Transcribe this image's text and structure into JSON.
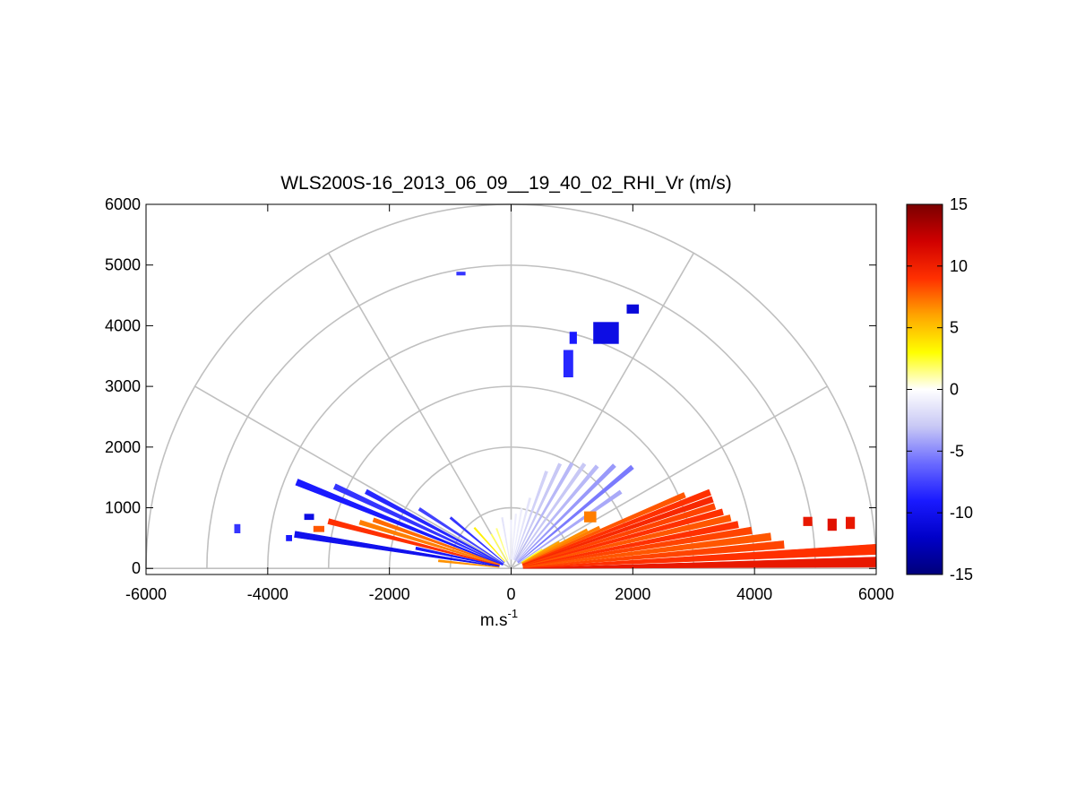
{
  "chart_data": {
    "type": "heatmap",
    "subtype": "polar-rhi-sector",
    "title": "WLS200S-16_2013_06_09__19_40_02_RHI_Vr (m/s)",
    "xlabel": "m.s",
    "xlabel_superscript": "-1",
    "xlim": [
      -6000,
      6000
    ],
    "ylim": [
      -100,
      6000
    ],
    "xticks": [
      -6000,
      -4000,
      -2000,
      0,
      2000,
      4000,
      6000
    ],
    "yticks": [
      0,
      1000,
      2000,
      3000,
      4000,
      5000,
      6000
    ],
    "polar_grid": {
      "ranges": [
        1000,
        2000,
        3000,
        4000,
        5000,
        6000
      ],
      "angles_deg": [
        0,
        30,
        60,
        90,
        120,
        150,
        180
      ]
    },
    "colorbar": {
      "range": [
        -15,
        15
      ],
      "ticks": [
        15,
        10,
        5,
        0,
        -5,
        -10,
        -15
      ],
      "colormap": [
        "#00007a",
        "#0000c8",
        "#1a1aff",
        "#6a6aff",
        "#c8c8f5",
        "#ffffff",
        "#ffff00",
        "#ffa500",
        "#ff3000",
        "#d00000",
        "#7a0000"
      ]
    },
    "rays": [
      {
        "elev_deg": 1.0,
        "r0": 200,
        "r1": 6000,
        "v": 10.5
      },
      {
        "elev_deg": 3.0,
        "r0": 200,
        "r1": 6000,
        "v": 9.0
      },
      {
        "elev_deg": 5.0,
        "r0": 200,
        "r1": 4500,
        "v": 8.5
      },
      {
        "elev_deg": 7.0,
        "r0": 200,
        "r1": 4300,
        "v": 8.0
      },
      {
        "elev_deg": 9.0,
        "r0": 200,
        "r1": 4000,
        "v": 8.5
      },
      {
        "elev_deg": 11.0,
        "r0": 200,
        "r1": 3800,
        "v": 9.0
      },
      {
        "elev_deg": 13.0,
        "r0": 200,
        "r1": 3700,
        "v": 8.0
      },
      {
        "elev_deg": 15.0,
        "r0": 200,
        "r1": 3600,
        "v": 9.0
      },
      {
        "elev_deg": 17.0,
        "r0": 200,
        "r1": 3500,
        "v": 8.5
      },
      {
        "elev_deg": 19.0,
        "r0": 200,
        "r1": 3500,
        "v": 9.5
      },
      {
        "elev_deg": 21.0,
        "r0": 200,
        "r1": 3500,
        "v": 9.0
      },
      {
        "elev_deg": 23.0,
        "r0": 200,
        "r1": 3100,
        "v": 8.0
      },
      {
        "elev_deg": 25.0,
        "r0": 200,
        "r1": 1600,
        "v": 7.0
      },
      {
        "elev_deg": 27.0,
        "r0": 200,
        "r1": 1400,
        "v": 6.5
      },
      {
        "elev_deg": 29.0,
        "r0": 200,
        "r1": 900,
        "v": 6.0
      },
      {
        "elev_deg": 31.5,
        "r0": 200,
        "r1": 600,
        "v": 2.5
      },
      {
        "elev_deg": 35.0,
        "r0": 150,
        "r1": 2200,
        "v": -4.0
      },
      {
        "elev_deg": 40.0,
        "r0": 150,
        "r1": 2600,
        "v": -5.5
      },
      {
        "elev_deg": 45.0,
        "r0": 150,
        "r1": 2400,
        "v": -4.5
      },
      {
        "elev_deg": 50.0,
        "r0": 150,
        "r1": 2200,
        "v": -3.5
      },
      {
        "elev_deg": 55.0,
        "r0": 150,
        "r1": 2100,
        "v": -3.0
      },
      {
        "elev_deg": 60.0,
        "r0": 150,
        "r1": 2000,
        "v": -3.5
      },
      {
        "elev_deg": 65.0,
        "r0": 150,
        "r1": 1900,
        "v": -3.0
      },
      {
        "elev_deg": 70.0,
        "r0": 150,
        "r1": 1700,
        "v": -2.5
      },
      {
        "elev_deg": 75.0,
        "r0": 150,
        "r1": 1200,
        "v": -1.5
      },
      {
        "elev_deg": 80.0,
        "r0": 150,
        "r1": 1000,
        "v": -1.0
      },
      {
        "elev_deg": 85.0,
        "r0": 150,
        "r1": 900,
        "v": -1.0
      },
      {
        "elev_deg": 90.0,
        "r0": 150,
        "r1": 800,
        "v": -1.0
      },
      {
        "elev_deg": 100.0,
        "r0": 150,
        "r1": 850,
        "v": -1.5
      },
      {
        "elev_deg": 110.0,
        "r0": 150,
        "r1": 700,
        "v": 1.5
      },
      {
        "elev_deg": 120.0,
        "r0": 150,
        "r1": 650,
        "v": 2.0
      },
      {
        "elev_deg": 132.0,
        "r0": 150,
        "r1": 900,
        "v": 3.5
      },
      {
        "elev_deg": 140.0,
        "r0": 150,
        "r1": 1300,
        "v": -8.0
      },
      {
        "elev_deg": 147.0,
        "r0": 150,
        "r1": 1800,
        "v": -7.5
      },
      {
        "elev_deg": 152.0,
        "r0": 150,
        "r1": 2700,
        "v": -8.5
      },
      {
        "elev_deg": 155.0,
        "r0": 150,
        "r1": 3200,
        "v": -8.0
      },
      {
        "elev_deg": 158.0,
        "r0": 150,
        "r1": 3800,
        "v": -9.0
      },
      {
        "elev_deg": 160.5,
        "r0": 200,
        "r1": 2400,
        "v": 7.5
      },
      {
        "elev_deg": 163.0,
        "r0": 200,
        "r1": 2600,
        "v": 7.0
      },
      {
        "elev_deg": 165.5,
        "r0": 200,
        "r1": 3100,
        "v": 9.0
      },
      {
        "elev_deg": 168.0,
        "r0": 200,
        "r1": 1600,
        "v": -9.0
      },
      {
        "elev_deg": 171.0,
        "r0": 200,
        "r1": 3600,
        "v": -10.0
      },
      {
        "elev_deg": 174.0,
        "r0": 200,
        "r1": 1200,
        "v": 6.5
      }
    ],
    "patches": [
      {
        "x": 860,
        "y": 3150,
        "w": 160,
        "h": 450,
        "v": -8.5
      },
      {
        "x": 960,
        "y": 3700,
        "w": 120,
        "h": 200,
        "v": -9.0
      },
      {
        "x": 1350,
        "y": 3700,
        "w": 420,
        "h": 360,
        "v": -10.5
      },
      {
        "x": 1900,
        "y": 4200,
        "w": 200,
        "h": 150,
        "v": -11.0
      },
      {
        "x": -900,
        "y": 4830,
        "w": 150,
        "h": 60,
        "v": -8.0
      },
      {
        "x": -4550,
        "y": 580,
        "w": 100,
        "h": 150,
        "v": -8.0
      },
      {
        "x": -3700,
        "y": 450,
        "w": 100,
        "h": 100,
        "v": -9.0
      },
      {
        "x": -3400,
        "y": 800,
        "w": 160,
        "h": 100,
        "v": -10.5
      },
      {
        "x": -3250,
        "y": 600,
        "w": 180,
        "h": 100,
        "v": 8.0
      },
      {
        "x": 1200,
        "y": 760,
        "w": 200,
        "h": 180,
        "v": 7.0
      },
      {
        "x": 4800,
        "y": 700,
        "w": 150,
        "h": 150,
        "v": 10.5
      },
      {
        "x": 5200,
        "y": 620,
        "w": 150,
        "h": 200,
        "v": 11.0
      },
      {
        "x": 5500,
        "y": 650,
        "w": 150,
        "h": 200,
        "v": 10.5
      }
    ]
  }
}
